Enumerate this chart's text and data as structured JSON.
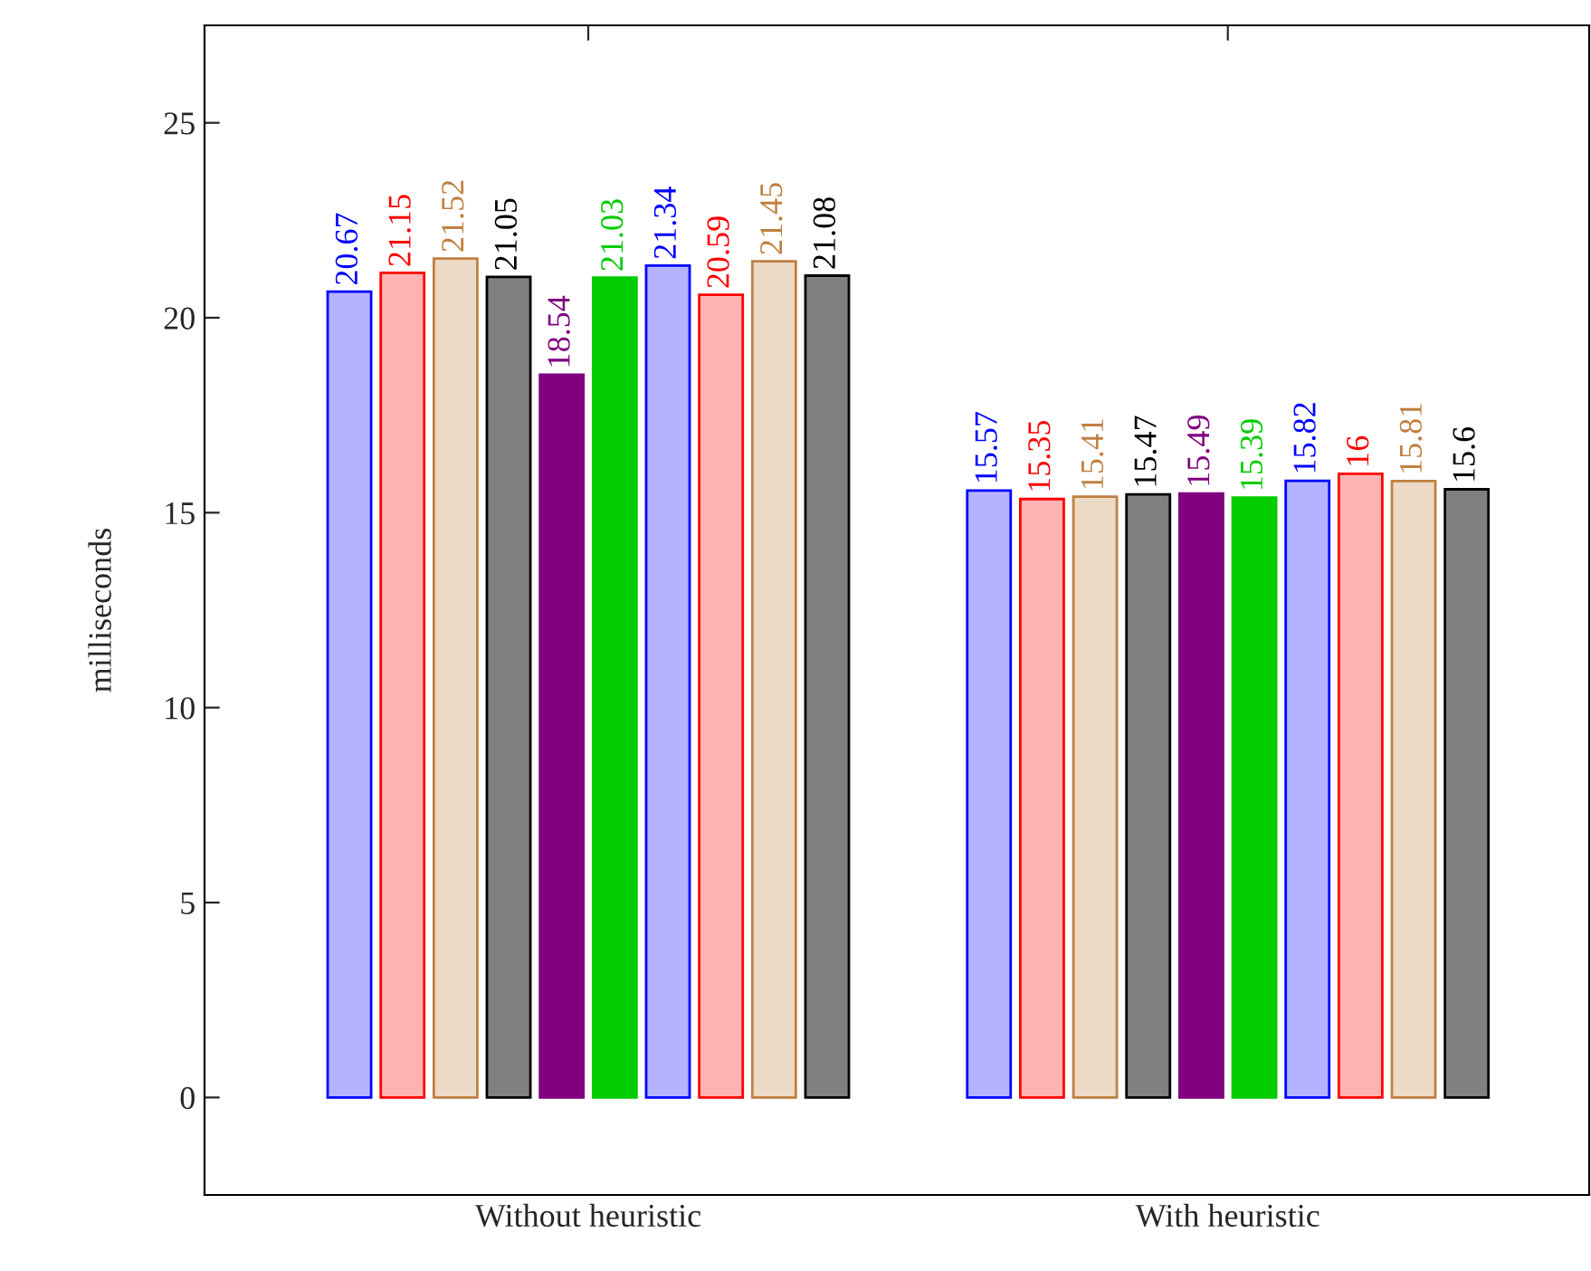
{
  "chart_data": {
    "type": "bar",
    "ylabel": "milliseconds",
    "categories": [
      "Without heuristic",
      "With heuristic"
    ],
    "series": [
      {
        "color": "#b3b3ff",
        "values": [
          20.67,
          15.57
        ]
      },
      {
        "color": "#ffb3b3",
        "values": [
          21.15,
          15.35
        ]
      },
      {
        "color": "#ecd9c6",
        "values": [
          21.52,
          15.41
        ]
      },
      {
        "color": "#808080",
        "values": [
          21.05,
          15.47
        ]
      },
      {
        "color": "#800080",
        "values": [
          18.54,
          15.49
        ]
      },
      {
        "color": "#00cc00",
        "values": [
          21.03,
          15.39
        ]
      },
      {
        "color": "#b3b3ff",
        "values": [
          21.34,
          15.82
        ]
      },
      {
        "color": "#ffb3b3",
        "values": [
          20.59,
          16
        ]
      },
      {
        "color": "#ecd9c6",
        "values": [
          21.45,
          15.81
        ]
      },
      {
        "color": "#808080",
        "values": [
          21.08,
          15.6
        ]
      }
    ],
    "ylim": [
      -2.5,
      27.5
    ],
    "yticks": [
      0,
      5,
      10,
      15,
      20,
      25
    ],
    "data_labels": true,
    "grid": false,
    "legend": false
  }
}
